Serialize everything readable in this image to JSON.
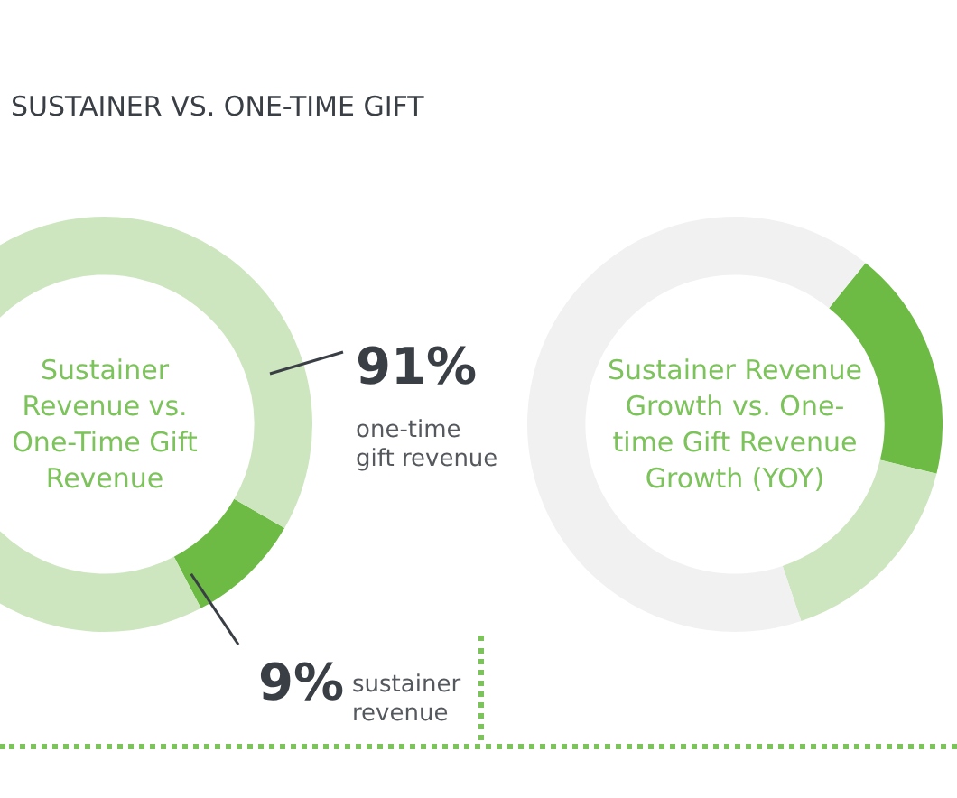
{
  "chart_data": [
    {
      "type": "donut",
      "title": "Sustainer Revenue vs. One-Time Gift Revenue",
      "annotations": [
        "SUSTAINER VS. ONE-TIME GIFT"
      ],
      "categories": [
        "sustainer revenue",
        "one-time gift revenue"
      ],
      "values": [
        9,
        91
      ],
      "value_labels": [
        "9%",
        "91%"
      ],
      "colors": [
        "#6dbb45",
        "#cde6bf"
      ],
      "legend": false
    },
    {
      "type": "donut",
      "title": "Sustainer Revenue Growth vs. One-time Gift Revenue Growth (YOY)",
      "categories": [
        null,
        null,
        null
      ],
      "values": [
        18,
        16,
        66
      ],
      "colors": [
        "#6dbb45",
        "#cde6bf",
        "#f0f1f0"
      ],
      "legend": false
    }
  ]
}
